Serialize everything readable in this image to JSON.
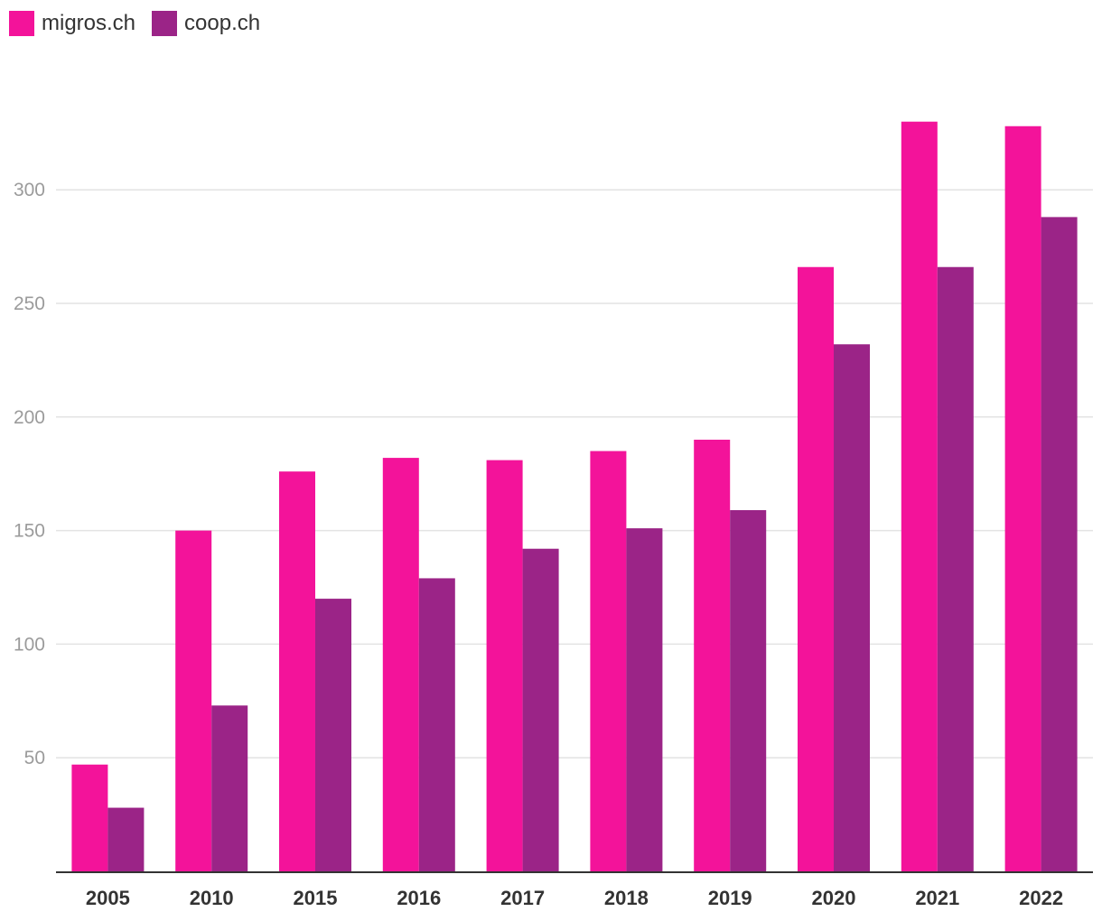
{
  "legend": {
    "items": [
      {
        "label": "migros.ch",
        "color": "#f3139a"
      },
      {
        "label": "coop.ch",
        "color": "#9b2487"
      }
    ]
  },
  "chart_data": {
    "type": "bar",
    "title": "",
    "xlabel": "",
    "ylabel": "",
    "categories": [
      "2005",
      "2010",
      "2015",
      "2016",
      "2017",
      "2018",
      "2019",
      "2020",
      "2021",
      "2022"
    ],
    "series": [
      {
        "name": "migros.ch",
        "color": "#f3139a",
        "values": [
          47,
          150,
          176,
          182,
          181,
          185,
          190,
          266,
          330,
          328
        ]
      },
      {
        "name": "coop.ch",
        "color": "#9b2487",
        "values": [
          28,
          73,
          120,
          129,
          142,
          151,
          159,
          232,
          266,
          288
        ]
      }
    ],
    "ylim": [
      0,
      350
    ],
    "yticks": [
      50,
      100,
      150,
      200,
      250,
      300
    ],
    "grid": true,
    "legend_position": "top-left"
  }
}
